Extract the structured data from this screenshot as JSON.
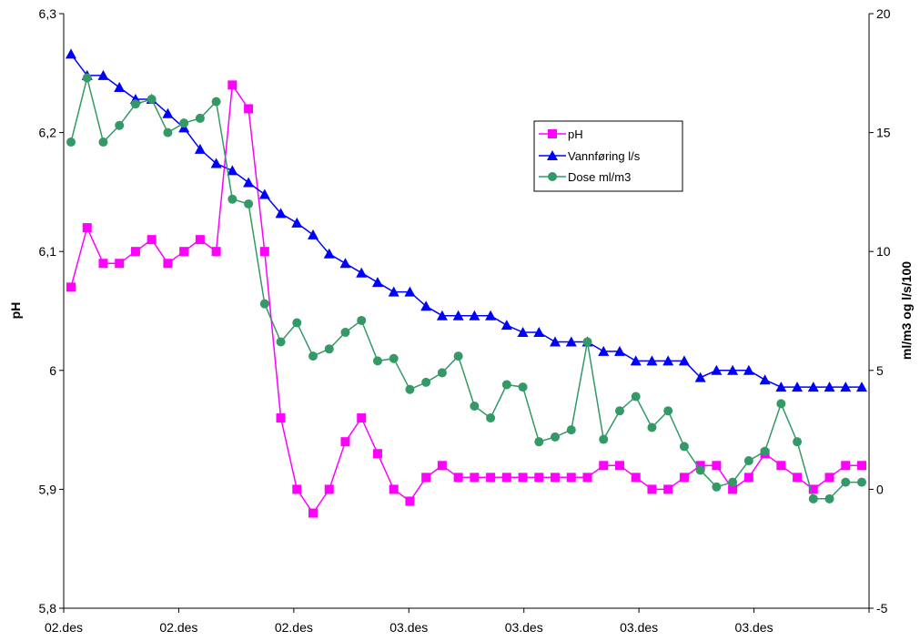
{
  "chart_data": {
    "type": "line",
    "x_tick_labels": [
      "02.des",
      "02.des",
      "02.des",
      "03.des",
      "03.des",
      "03.des",
      "03.des"
    ],
    "ylabel_left": "pH",
    "ylabel_right": "ml/m3 og l/s/100",
    "ylim_left": [
      5.8,
      6.3
    ],
    "ylim_right": [
      -5,
      20
    ],
    "yticks_left": [
      "6,3",
      "6,2",
      "6,1",
      "6",
      "5,9",
      "5,8"
    ],
    "yticks_right": [
      "20",
      "15",
      "10",
      "5",
      "0",
      "-5"
    ],
    "grid": false,
    "legend_position": "top-right",
    "series": [
      {
        "name": "pH",
        "axis": "left",
        "color": "#ff00ff",
        "marker": "square",
        "values": [
          6.07,
          6.12,
          6.09,
          6.09,
          6.1,
          6.11,
          6.09,
          6.1,
          6.11,
          6.1,
          6.24,
          6.22,
          6.1,
          5.96,
          5.9,
          5.88,
          5.9,
          5.94,
          5.96,
          5.93,
          5.9,
          5.89,
          5.91,
          5.92,
          5.91,
          5.91,
          5.91,
          5.91,
          5.91,
          5.91,
          5.91,
          5.91,
          5.91,
          5.92,
          5.92,
          5.91,
          5.9,
          5.9,
          5.91,
          5.92,
          5.92,
          5.9,
          5.91,
          5.93,
          5.92,
          5.91,
          5.9,
          5.91,
          5.92,
          5.92
        ]
      },
      {
        "name": "Vannføring l/s",
        "axis": "right",
        "color": "#0000ff",
        "marker": "triangle",
        "values": [
          18.3,
          17.4,
          17.4,
          16.9,
          16.4,
          16.4,
          15.8,
          15.2,
          14.3,
          13.7,
          13.4,
          12.9,
          12.4,
          11.6,
          11.2,
          10.7,
          9.9,
          9.5,
          9.1,
          8.7,
          8.3,
          8.3,
          7.7,
          7.3,
          7.3,
          7.3,
          7.3,
          6.9,
          6.6,
          6.6,
          6.2,
          6.2,
          6.2,
          5.8,
          5.8,
          5.4,
          5.4,
          5.4,
          5.4,
          4.7,
          5.0,
          5.0,
          5.0,
          4.6,
          4.3,
          4.3,
          4.3,
          4.3,
          4.3,
          4.3
        ]
      },
      {
        "name": "Dose ml/m3",
        "axis": "right",
        "color": "#339966",
        "marker": "circle",
        "values": [
          14.6,
          17.3,
          14.6,
          15.3,
          16.2,
          16.4,
          15.0,
          15.4,
          15.6,
          16.3,
          12.2,
          12.0,
          7.8,
          6.2,
          7.0,
          5.6,
          5.9,
          6.6,
          7.1,
          5.4,
          5.5,
          4.2,
          4.5,
          4.9,
          5.6,
          3.5,
          3.0,
          4.4,
          4.3,
          2.0,
          2.2,
          2.5,
          6.2,
          2.1,
          3.3,
          3.9,
          2.6,
          3.3,
          1.8,
          0.8,
          0.1,
          0.3,
          1.2,
          1.6,
          3.6,
          2.0,
          -0.4,
          -0.4,
          0.3,
          0.3
        ]
      }
    ]
  }
}
